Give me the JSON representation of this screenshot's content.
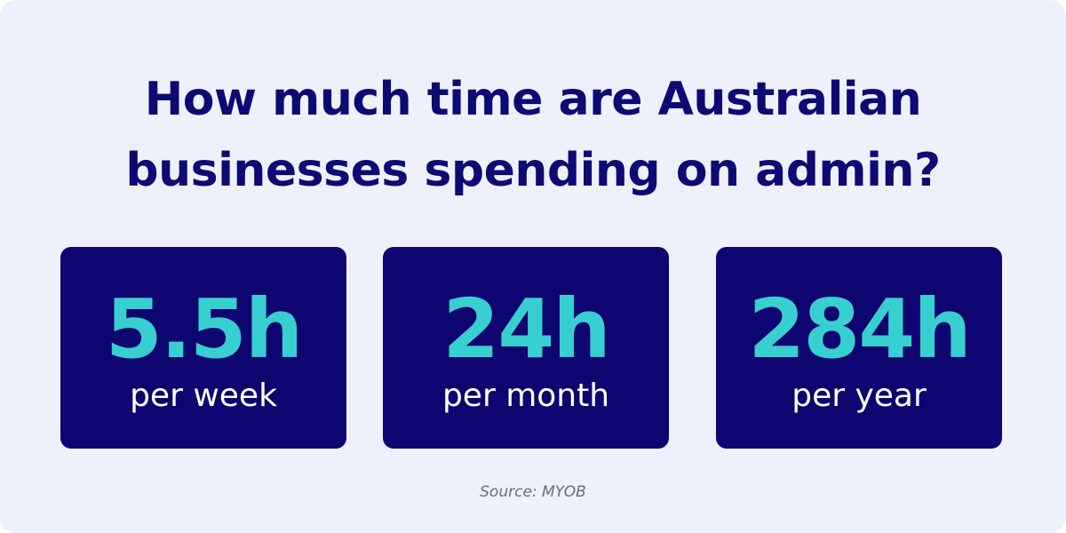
{
  "title": "How much time are Australian businesses spending on admin?",
  "stats": [
    {
      "value": "5.5h",
      "label": "per week"
    },
    {
      "value": "24h",
      "label": "per month"
    },
    {
      "value": "284h",
      "label": "per year"
    }
  ],
  "source": "Source: MYOB"
}
